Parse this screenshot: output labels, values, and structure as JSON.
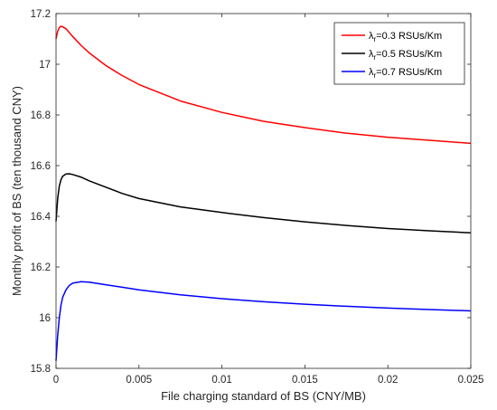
{
  "chart_data": {
    "type": "line",
    "xlabel": "File charging standard of BS (CNY/MB)",
    "ylabel": "Monthly profit of BS (ten thousand CNY)",
    "xlim": [
      0,
      0.025
    ],
    "ylim": [
      15.8,
      17.2
    ],
    "x_ticks": [
      "0",
      "0.005",
      "0.01",
      "0.015",
      "0.02",
      "0.025"
    ],
    "y_ticks": [
      "15.8",
      "16",
      "16.2",
      "16.4",
      "16.6",
      "16.8",
      "17",
      "17.2"
    ],
    "grid": false,
    "legend_position": "top-right",
    "series": [
      {
        "name_prefix": "λ",
        "name_sub": "r",
        "name_suffix": "=0.3 RSUs/Km",
        "color": "#ff0000",
        "x": [
          0.0,
          0.0001,
          0.0002,
          0.0003,
          0.0004,
          0.0006,
          0.0008,
          0.001,
          0.0015,
          0.002,
          0.003,
          0.004,
          0.005,
          0.0075,
          0.01,
          0.0125,
          0.015,
          0.0175,
          0.02,
          0.0225,
          0.025
        ],
        "y": [
          17.1,
          17.13,
          17.145,
          17.15,
          17.148,
          17.14,
          17.125,
          17.11,
          17.075,
          17.045,
          16.995,
          16.955,
          16.92,
          16.855,
          16.81,
          16.775,
          16.75,
          16.728,
          16.712,
          16.7,
          16.688
        ]
      },
      {
        "name_prefix": "λ",
        "name_sub": "r",
        "name_suffix": "=0.5 RSUs/Km",
        "color": "#000000",
        "x": [
          0.0,
          0.0001,
          0.0002,
          0.0003,
          0.0004,
          0.0006,
          0.0008,
          0.001,
          0.0015,
          0.002,
          0.003,
          0.004,
          0.005,
          0.0075,
          0.01,
          0.0125,
          0.015,
          0.0175,
          0.02,
          0.0225,
          0.025
        ],
        "y": [
          16.38,
          16.47,
          16.52,
          16.545,
          16.558,
          16.567,
          16.568,
          16.565,
          16.555,
          16.54,
          16.515,
          16.49,
          16.47,
          16.437,
          16.415,
          16.395,
          16.378,
          16.364,
          16.352,
          16.343,
          16.335
        ]
      },
      {
        "name_prefix": "λ",
        "name_sub": "r",
        "name_suffix": "=0.7 RSUs/Km",
        "color": "#0000ff",
        "x": [
          0.0,
          0.0001,
          0.0002,
          0.0003,
          0.0004,
          0.0006,
          0.0008,
          0.001,
          0.0015,
          0.002,
          0.003,
          0.004,
          0.005,
          0.0075,
          0.01,
          0.0125,
          0.015,
          0.0175,
          0.02,
          0.0225,
          0.025
        ],
        "y": [
          15.83,
          15.93,
          16.0,
          16.05,
          16.08,
          16.11,
          16.127,
          16.136,
          16.142,
          16.14,
          16.13,
          16.12,
          16.11,
          16.09,
          16.075,
          16.063,
          16.053,
          16.045,
          16.038,
          16.032,
          16.027
        ]
      }
    ]
  }
}
